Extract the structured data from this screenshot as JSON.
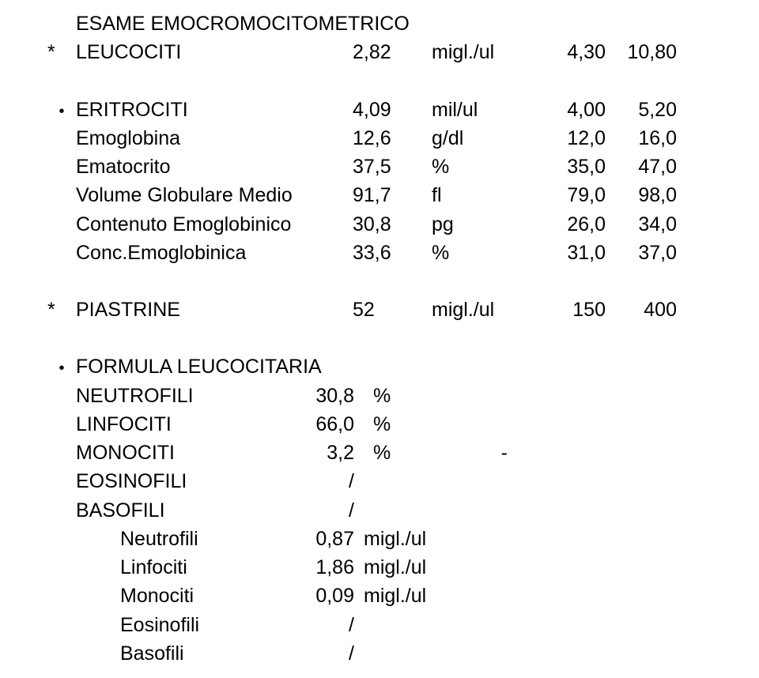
{
  "doc": {
    "font_family": "Arial",
    "base_font_size": 25,
    "text_color": "#000000",
    "background": "#ffffff"
  },
  "exam": {
    "title": "ESAME EMOCROMOCITOMETRICO",
    "lines": [
      {
        "marker": "*",
        "name": "LEUCOCITI",
        "value": "2,82",
        "unit": "migl./ul",
        "min": "4,30",
        "max": "10,80"
      }
    ],
    "bullet_lines": [
      {
        "bullet": "•",
        "name": "ERITROCITI",
        "value": "4,09",
        "unit": "mil/ul",
        "min": "4,00",
        "max": "5,20"
      },
      {
        "bullet": "",
        "name": "Emoglobina",
        "value": "12,6",
        "unit": "g/dl",
        "min": "12,0",
        "max": "16,0"
      },
      {
        "bullet": "",
        "name": "Ematocrito",
        "value": "37,5",
        "unit": "%",
        "min": "35,0",
        "max": "47,0"
      },
      {
        "bullet": "",
        "name": "Volume Globulare Medio",
        "value": "91,7",
        "unit": "fl",
        "min": "79,0",
        "max": "98,0"
      },
      {
        "bullet": "",
        "name": "Contenuto Emoglobinico",
        "value": "30,8",
        "unit": "pg",
        "min": "26,0",
        "max": "34,0"
      },
      {
        "bullet": "",
        "name": "Conc.Emoglobinica",
        "value": "33,6",
        "unit": "%",
        "min": "31,0",
        "max": "37,0"
      }
    ],
    "piastrine": {
      "marker": "*",
      "name": "PIASTRINE",
      "value": "52",
      "unit": "migl./ul",
      "min": "150",
      "max": "400"
    },
    "formula": {
      "title": "FORMULA LEUCOCITARIA",
      "bullet": "•",
      "rows": [
        {
          "name": "NEUTROFILI",
          "value": "30,8",
          "unit": "%",
          "extra": ""
        },
        {
          "name": "LINFOCITI",
          "value": "66,0",
          "unit": "%",
          "extra": ""
        },
        {
          "name": "MONOCITI",
          "value": "3,2",
          "unit": "%",
          "extra": "-"
        },
        {
          "name": "EOSINOFILI",
          "value": "/",
          "unit": "",
          "extra": ""
        },
        {
          "name": "BASOFILI",
          "value": "/",
          "unit": "",
          "extra": ""
        }
      ],
      "abs": [
        {
          "name": "Neutrofili",
          "value": "0,87",
          "unit": "migl./ul"
        },
        {
          "name": "Linfociti",
          "value": "1,86",
          "unit": "migl./ul"
        },
        {
          "name": "Monociti",
          "value": "0,09",
          "unit": "migl./ul"
        },
        {
          "name": "Eosinofili",
          "value": "/",
          "unit": ""
        },
        {
          "name": "Basofili",
          "value": "/",
          "unit": ""
        }
      ]
    }
  }
}
